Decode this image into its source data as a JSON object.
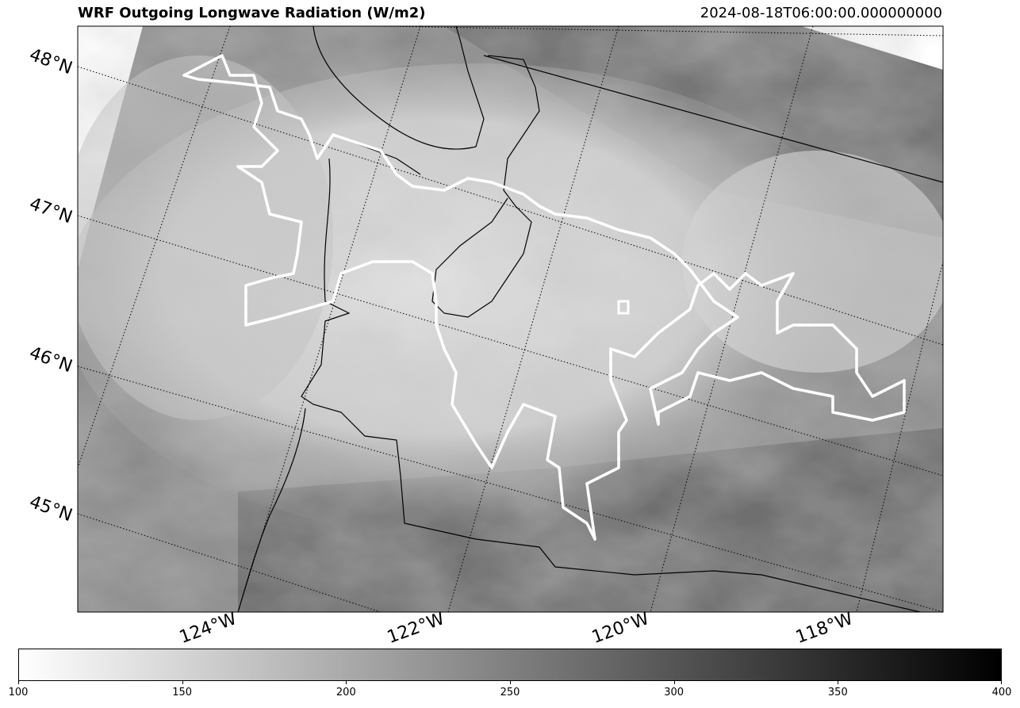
{
  "header": {
    "title": "WRF Outgoing Longwave Radiation (W/m2)",
    "timestamp": "2024-08-18T06:00:00.000000000"
  },
  "map": {
    "variable": "outgoing-longwave-radiation",
    "colormap": "greys",
    "lat_labels": [
      "48°N",
      "47°N",
      "46°N",
      "45°N"
    ],
    "lon_labels": [
      "124°W",
      "122°W",
      "120°W",
      "118°W"
    ],
    "layers": [
      "state-borders",
      "coastline",
      "fire-perimeter-outline",
      "lat-lon-gridlines"
    ]
  },
  "colorbar": {
    "min": 100,
    "max": 400,
    "ticks": [
      "100",
      "150",
      "200",
      "250",
      "300",
      "350",
      "400"
    ],
    "colors": {
      "low": "#ffffff",
      "high": "#000000"
    }
  }
}
